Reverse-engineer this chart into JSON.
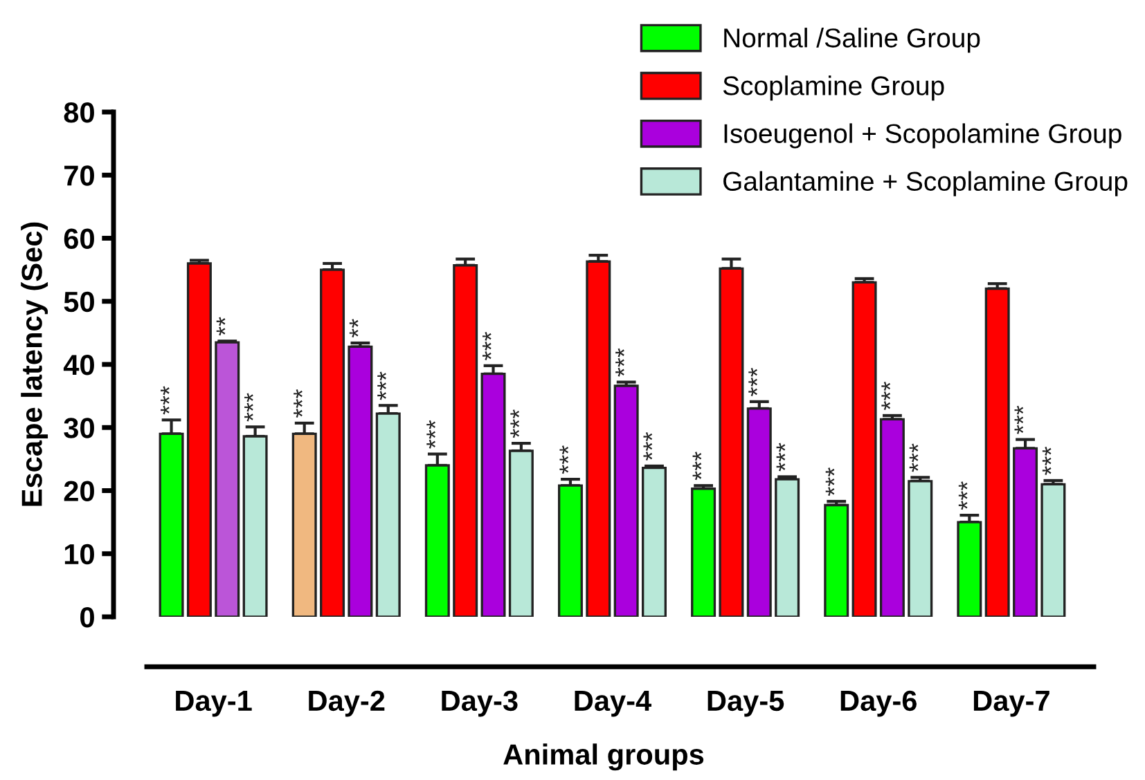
{
  "chart_data": {
    "type": "bar",
    "xlabel": "Animal groups",
    "ylabel": "Escape latency (Sec)",
    "categories": [
      "Day-1",
      "Day-2",
      "Day-3",
      "Day-4",
      "Day-5",
      "Day-6",
      "Day-7"
    ],
    "series": [
      {
        "name": "Normal /Saline Group",
        "color": "#00ff00",
        "colors": [
          "#00ff00",
          "#f0b880",
          "#00ff00",
          "#00ff00",
          "#00ff00",
          "#00ff00",
          "#00ff00"
        ],
        "values": [
          29,
          29,
          24,
          20.8,
          20.3,
          17.7,
          15
        ],
        "errors": [
          2.2,
          1.7,
          1.8,
          1,
          0.5,
          0.6,
          1.1
        ],
        "value_labels": [
          "***",
          "***",
          "***",
          "***",
          "***",
          "***",
          "***"
        ]
      },
      {
        "name": "Scoplamine Group",
        "color": "#ff0000",
        "values": [
          56,
          55,
          55.7,
          56.3,
          55.2,
          53,
          52
        ],
        "errors": [
          0.5,
          1,
          1,
          1,
          1.5,
          0.6,
          0.8
        ]
      },
      {
        "name": "Isoeugenol + Scopolamine Group",
        "color": "#aa00dd",
        "colors": [
          "#bb55d8",
          "#aa00dd",
          "#aa00dd",
          "#aa00dd",
          "#aa00dd",
          "#aa00dd",
          "#aa00dd"
        ],
        "values": [
          43.5,
          42.8,
          38.5,
          36.6,
          33,
          31.3,
          26.7
        ],
        "errors": [
          0.2,
          0.6,
          1.3,
          0.6,
          1.1,
          0.6,
          1.4
        ],
        "value_labels": [
          "**",
          "**",
          "***",
          "***",
          "***",
          "***",
          "***"
        ]
      },
      {
        "name": "Galantamine + Scoplamine Group",
        "color": "#b8e8d8",
        "values": [
          28.6,
          32.2,
          26.3,
          23.6,
          21.8,
          21.5,
          21
        ],
        "errors": [
          1.5,
          1.3,
          1.2,
          0.3,
          0.4,
          0.6,
          0.6
        ],
        "value_labels": [
          "***",
          "***",
          "***",
          "***",
          "***",
          "***",
          "***"
        ]
      }
    ],
    "ylim": [
      0,
      80
    ],
    "yticks": [
      0,
      10,
      20,
      30,
      40,
      50,
      60,
      70,
      80
    ],
    "grid": false,
    "legend": "top right"
  }
}
